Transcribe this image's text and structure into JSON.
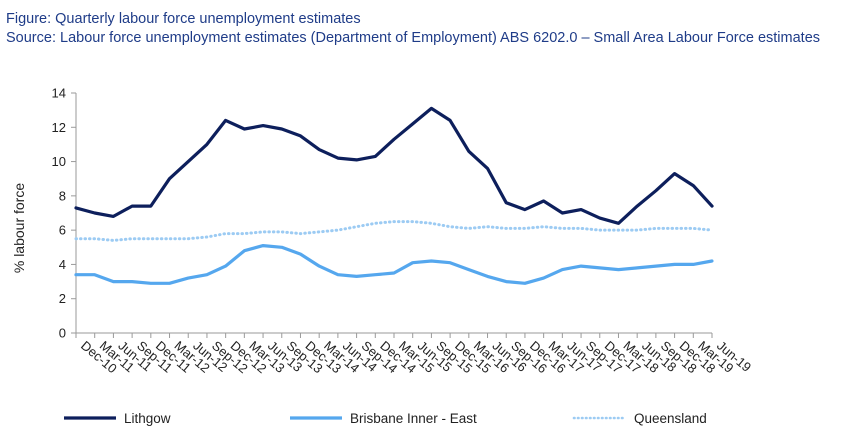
{
  "figure": {
    "title": "Figure: Quarterly labour force unemployment estimates",
    "source": "Source:  Labour force unemployment estimates (Department of Employment) ABS 6202.0 – Small Area Labour Force estimates"
  },
  "chart_data": {
    "type": "line",
    "title": "Quarterly labour force unemployment estimates",
    "xlabel": "",
    "ylabel": "% labour force",
    "ylim": [
      0,
      14
    ],
    "yticks": [
      0,
      2,
      4,
      6,
      8,
      10,
      12,
      14
    ],
    "grid": false,
    "legend": "bottom",
    "categories": [
      "Dec-10",
      "Mar-11",
      "Jun-11",
      "Sep-11",
      "Dec-11",
      "Mar-12",
      "Jun-12",
      "Sep-12",
      "Dec-12",
      "Mar-13",
      "Jun-13",
      "Sep-13",
      "Dec-13",
      "Mar-14",
      "Jun-14",
      "Sep-14",
      "Dec-14",
      "Mar-15",
      "Jun-15",
      "Sep-15",
      "Dec-15",
      "Mar-16",
      "Jun-16",
      "Sep-16",
      "Dec-16",
      "Mar-17",
      "Jun-17",
      "Sep-17",
      "Dec-17",
      "Mar-18",
      "Jun-18",
      "Sep-18",
      "Dec-18",
      "Mar-19",
      "Jun-19"
    ],
    "series": [
      {
        "name": "Lithgow",
        "color": "#0d1f5c",
        "style": "solid",
        "values": [
          7.3,
          7.0,
          6.8,
          7.4,
          7.4,
          9.0,
          10.0,
          11.0,
          12.4,
          11.9,
          12.1,
          11.9,
          11.5,
          10.7,
          10.2,
          10.1,
          10.3,
          11.3,
          12.2,
          13.1,
          12.4,
          10.6,
          9.6,
          7.6,
          7.2,
          7.7,
          7.0,
          7.2,
          6.7,
          6.4,
          7.4,
          8.3,
          9.3,
          8.6,
          7.4
        ]
      },
      {
        "name": "Brisbane Inner - East",
        "color": "#55a7ee",
        "style": "solid",
        "values": [
          3.4,
          3.4,
          3.0,
          3.0,
          2.9,
          2.9,
          3.2,
          3.4,
          3.9,
          4.8,
          5.1,
          5.0,
          4.6,
          3.9,
          3.4,
          3.3,
          3.4,
          3.5,
          4.1,
          4.2,
          4.1,
          3.7,
          3.3,
          3.0,
          2.9,
          3.2,
          3.7,
          3.9,
          3.8,
          3.7,
          3.8,
          3.9,
          4.0,
          4.0,
          4.2
        ]
      },
      {
        "name": "Queensland",
        "color": "#9ccbf3",
        "style": "dotted",
        "values": [
          5.5,
          5.5,
          5.4,
          5.5,
          5.5,
          5.5,
          5.5,
          5.6,
          5.8,
          5.8,
          5.9,
          5.9,
          5.8,
          5.9,
          6.0,
          6.2,
          6.4,
          6.5,
          6.5,
          6.4,
          6.2,
          6.1,
          6.2,
          6.1,
          6.1,
          6.2,
          6.1,
          6.1,
          6.0,
          6.0,
          6.0,
          6.1,
          6.1,
          6.1,
          6.0
        ]
      }
    ]
  }
}
